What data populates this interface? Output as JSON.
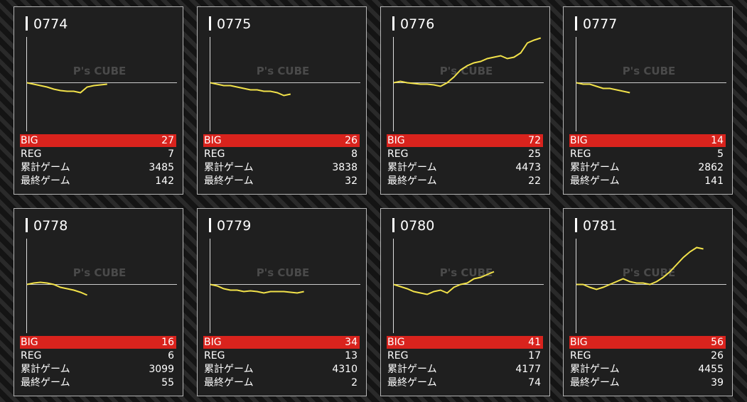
{
  "labels": [
    "BIG",
    "REG",
    "累計ゲーム",
    "最終ゲーム"
  ],
  "watermark": "P's CUBE",
  "cards": [
    {
      "number": "0774",
      "stats": [
        27,
        7,
        3485,
        142
      ],
      "graph": [
        0,
        -2,
        -4,
        -6,
        -9,
        -11,
        -12,
        -12,
        -14,
        -6,
        -4,
        -3,
        -2
      ]
    },
    {
      "number": "0775",
      "stats": [
        26,
        8,
        3838,
        32
      ],
      "graph": [
        0,
        -2,
        -4,
        -4,
        -6,
        -8,
        -10,
        -10,
        -12,
        -12,
        -14,
        -18,
        -16
      ]
    },
    {
      "number": "0776",
      "stats": [
        72,
        25,
        4473,
        22
      ],
      "graph": [
        0,
        2,
        0,
        -1,
        -2,
        -2,
        -3,
        -5,
        0,
        8,
        18,
        24,
        28,
        30,
        34,
        36,
        38,
        34,
        36,
        42,
        56,
        60,
        63
      ]
    },
    {
      "number": "0777",
      "stats": [
        14,
        5,
        2862,
        141
      ],
      "graph": [
        0,
        -2,
        -2,
        -5,
        -8,
        -8,
        -10,
        -12,
        -14
      ]
    },
    {
      "number": "0778",
      "stats": [
        16,
        6,
        3099,
        55
      ],
      "graph": [
        0,
        2,
        3,
        2,
        0,
        -4,
        -6,
        -8,
        -11,
        -15
      ]
    },
    {
      "number": "0779",
      "stats": [
        34,
        13,
        4310,
        2
      ],
      "graph": [
        0,
        -2,
        -6,
        -8,
        -8,
        -10,
        -9,
        -10,
        -12,
        -10,
        -10,
        -10,
        -11,
        -12,
        -10
      ]
    },
    {
      "number": "0780",
      "stats": [
        41,
        17,
        4177,
        74
      ],
      "graph": [
        0,
        -3,
        -6,
        -10,
        -12,
        -14,
        -10,
        -8,
        -12,
        -4,
        0,
        2,
        8,
        10,
        14,
        18
      ]
    },
    {
      "number": "0781",
      "stats": [
        56,
        26,
        4455,
        39
      ],
      "graph": [
        0,
        0,
        -4,
        -7,
        -4,
        0,
        4,
        8,
        4,
        2,
        2,
        0,
        4,
        10,
        18,
        28,
        38,
        46,
        52,
        50
      ]
    }
  ]
}
